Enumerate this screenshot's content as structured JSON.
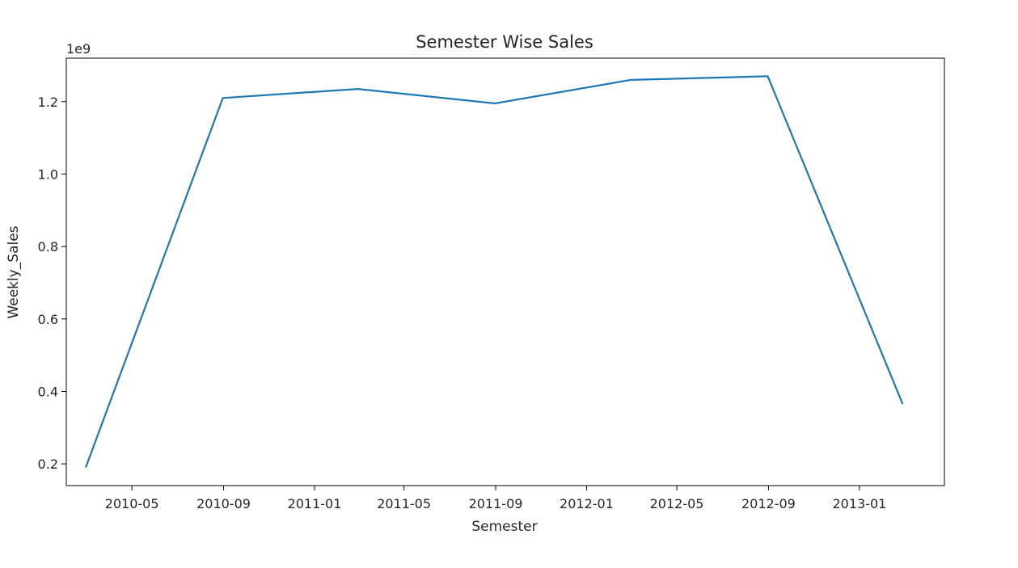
{
  "chart_data": {
    "type": "line",
    "title": "Semester Wise Sales",
    "xlabel": "Semester",
    "ylabel": "Weekly_Sales",
    "y_offset_label": "1e9",
    "x_scale": "date",
    "xlim": [
      "2010-02-02",
      "2013-04-25"
    ],
    "ylim": [
      0.14,
      1.32
    ],
    "y_multiplier": 1000000000,
    "x_ticks": [
      "2010-05",
      "2010-09",
      "2011-01",
      "2011-05",
      "2011-09",
      "2012-01",
      "2012-05",
      "2012-09",
      "2013-01"
    ],
    "y_ticks": [
      "0.2",
      "0.4",
      "0.6",
      "0.8",
      "1.0",
      "1.2"
    ],
    "grid": false,
    "series": [
      {
        "color": "#1f77b4",
        "x": [
          "2010-02-28",
          "2010-08-31",
          "2011-02-28",
          "2011-08-31",
          "2012-02-29",
          "2012-08-31",
          "2013-02-28"
        ],
        "y": [
          0.19,
          1.21,
          1.235,
          1.195,
          1.26,
          1.27,
          0.365
        ]
      }
    ]
  }
}
